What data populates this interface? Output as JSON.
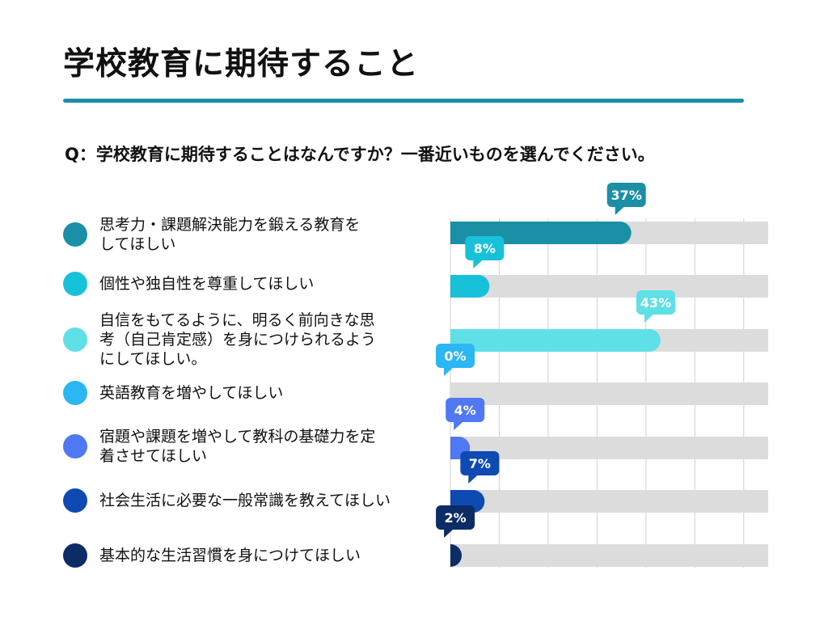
{
  "page": {
    "title": "学校教育に期待すること",
    "question": "Q：学校教育に期待することはなんですか？一番近いものを選んでください。"
  },
  "chart_data": {
    "type": "bar",
    "orientation": "horizontal",
    "title": "学校教育に期待すること",
    "categories": [
      "思考力・課題解決能力を鍛える教育を\nしてほしい",
      "個性や独自性を尊重してほしい",
      "自信をもてるように、明るく前向きな思\n考（自己肯定感）を身につけられるよう\nにしてほしい。",
      "英語教育を増やしてほしい",
      "宿題や課題を増やして教科の基礎力を定\n着させてほしい",
      "社会生活に必要な一般常識を教えてほしい",
      "基本的な生活習慣を身につけてほしい"
    ],
    "values": [
      37,
      8,
      43,
      0,
      4,
      7,
      2
    ],
    "value_labels": [
      "37%",
      "8%",
      "43%",
      "0%",
      "4%",
      "7%",
      "2%"
    ],
    "xlim": [
      0,
      65
    ],
    "grid": true,
    "colors": [
      "#1a8fa6",
      "#18c1da",
      "#5fe0e6",
      "#2bb6f4",
      "#4f78f2",
      "#0f4ab3",
      "#0d2c66"
    ],
    "track_color": "#dcdcdc",
    "grid_color": "#d0d0d0"
  }
}
